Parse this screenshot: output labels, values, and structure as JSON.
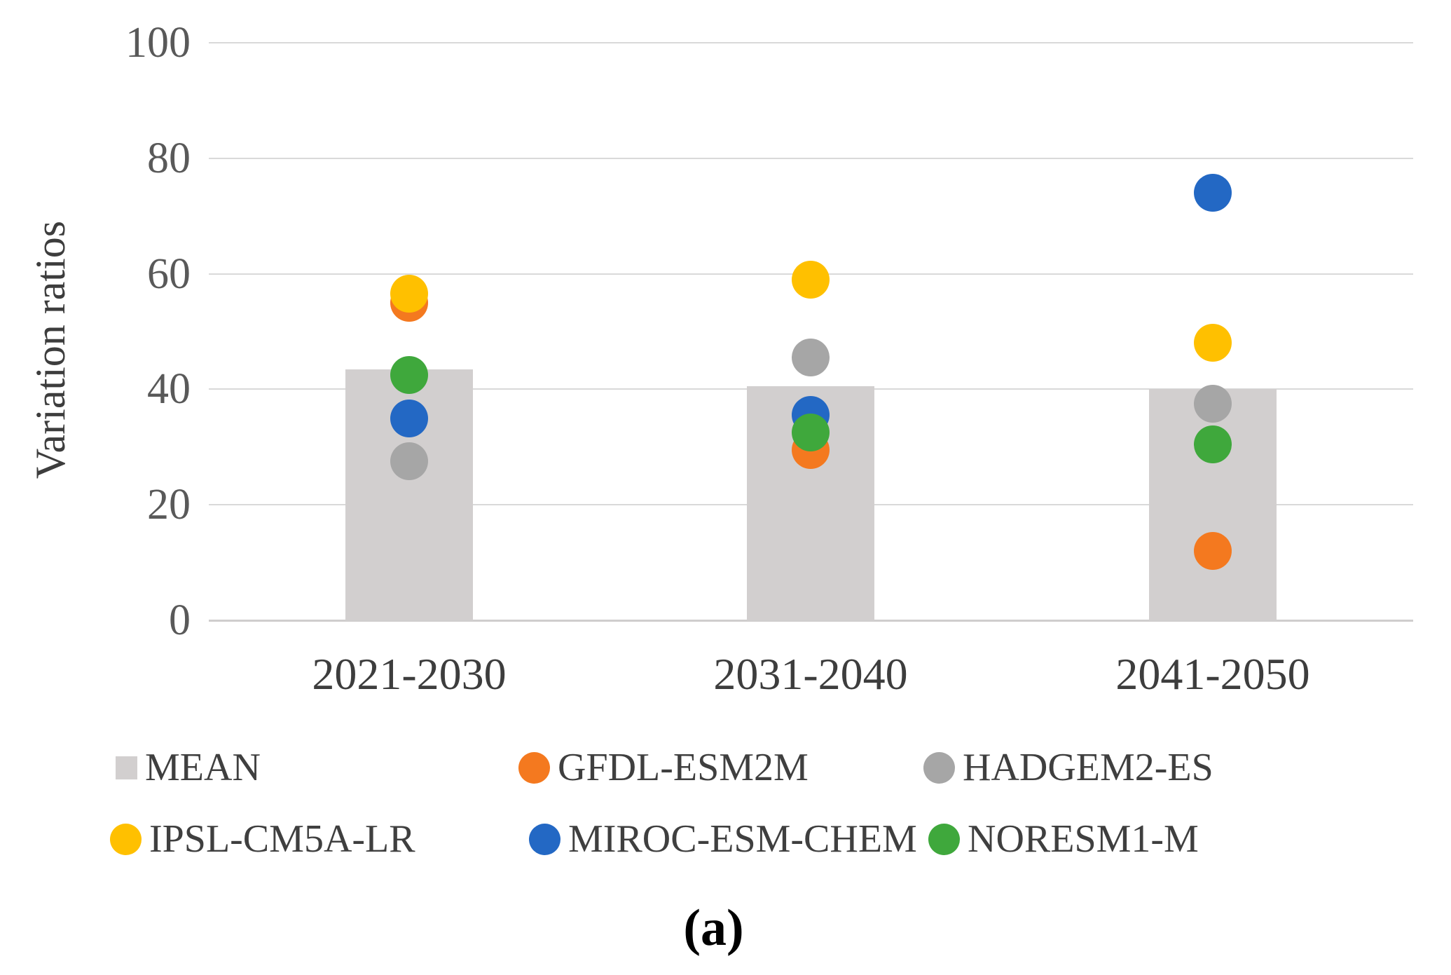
{
  "chart_data": {
    "type": "bar",
    "subtype": "bar-with-scatter-overlay",
    "title": "",
    "ylabel": "Variation ratios",
    "xlabel": "",
    "ylim": [
      0,
      100
    ],
    "yticks": [
      0,
      20,
      40,
      60,
      80,
      100
    ],
    "grid": true,
    "legend_position": "bottom",
    "categories": [
      "2021-2030",
      "2031-2040",
      "2041-2050"
    ],
    "series": [
      {
        "name": "MEAN",
        "type": "bar",
        "color": "#D2CFCF",
        "values": [
          43.5,
          40.5,
          40
        ]
      },
      {
        "name": "GFDL-ESM2M",
        "type": "scatter",
        "color": "#F4791F",
        "values": [
          55,
          29.5,
          12
        ]
      },
      {
        "name": "HADGEM2-ES",
        "type": "scatter",
        "color": "#A6A6A6",
        "values": [
          27.5,
          45.5,
          37.5
        ]
      },
      {
        "name": "IPSL-CM5A-LR",
        "type": "scatter",
        "color": "#FFC000",
        "values": [
          56.5,
          59,
          48
        ]
      },
      {
        "name": "MIROC-ESM-CHEM",
        "type": "scatter",
        "color": "#2368C4",
        "values": [
          35,
          35.5,
          74
        ]
      },
      {
        "name": "NORESM1-M",
        "type": "scatter",
        "color": "#3FA83C",
        "values": [
          42.5,
          32.5,
          30.5
        ]
      }
    ],
    "legend": [
      {
        "label": "MEAN",
        "marker": "square",
        "color": "#D2CFCF"
      },
      {
        "label": "GFDL-ESM2M",
        "marker": "circle",
        "color": "#F4791F"
      },
      {
        "label": "HADGEM2-ES",
        "marker": "circle",
        "color": "#A6A6A6"
      },
      {
        "label": "IPSL-CM5A-LR",
        "marker": "circle",
        "color": "#FFC000"
      },
      {
        "label": "MIROC-ESM-CHEM",
        "marker": "circle",
        "color": "#2368C4"
      },
      {
        "label": "NORESM1-M",
        "marker": "circle",
        "color": "#3FA83C"
      }
    ],
    "grid_color": "#D9D9D9",
    "axis_text_color": "#595959"
  },
  "caption": "(a)"
}
